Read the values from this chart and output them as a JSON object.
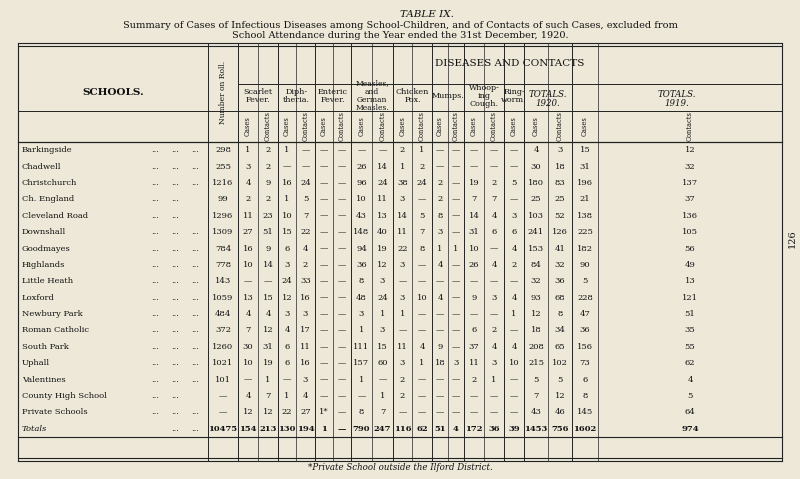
{
  "title_line1": "Summary of Cases of Infectious Diseases among School-Children, and of Contacts of such Cases, excluded from",
  "title_line2": "School Attendance during the Year ended the 31st December, 1920.",
  "table_label": "TABLE IX.",
  "diseases_header": "DISEASES AND CONTACTS",
  "footnote": "*Private School outside the Ilford District.",
  "bg_color": "#ede8d8",
  "schools": [
    "Barkingside",
    "Chadwell",
    "Christchurch",
    "Ch. England ...",
    "Cleveland Road",
    "Downshall",
    "Goodmayes",
    "Highlands",
    "Little Heath ...",
    "Loxford",
    "Newbury Park",
    "Roman Catholic",
    "South Park",
    "Uphall",
    "Valentines",
    "County High School",
    "Private Schools"
  ],
  "school_dots": [
    [
      "...",
      "...",
      "..."
    ],
    [
      "...",
      "...",
      "..."
    ],
    [
      "...",
      "...",
      "..."
    ],
    [
      "...",
      "...",
      ""
    ],
    [
      "...",
      "...",
      ""
    ],
    [
      "...",
      "...",
      "..."
    ],
    [
      "...",
      "...",
      "..."
    ],
    [
      "...",
      "...",
      "..."
    ],
    [
      "...",
      "...",
      ""
    ],
    [
      "...",
      "...",
      "..."
    ],
    [
      "...",
      "...",
      "..."
    ],
    [
      "...",
      "...",
      "..."
    ],
    [
      "...",
      "...",
      "..."
    ],
    [
      "...",
      "...",
      "..."
    ],
    [
      "...",
      "...",
      "..."
    ],
    [
      "...",
      ".."
    ],
    [
      "...",
      "...",
      "..."
    ]
  ],
  "roll": [
    "298",
    "255",
    "1216",
    "99",
    "1296",
    "1309",
    "784",
    "778",
    "143",
    "1059",
    "484",
    "372",
    "1260",
    "1021",
    "101",
    "—",
    "—"
  ],
  "scarlet_cases": [
    "1",
    "3",
    "4",
    "2",
    "11",
    "27",
    "16",
    "10",
    "—",
    "13",
    "4",
    "7",
    "30",
    "10",
    "—",
    "4",
    "12"
  ],
  "scarlet_cont": [
    "2",
    "2",
    "9",
    "2",
    "23",
    "51",
    "9",
    "14",
    "—",
    "15",
    "4",
    "12",
    "31",
    "19",
    "1",
    "7",
    "12"
  ],
  "diph_cases": [
    "1",
    "—",
    "16",
    "1",
    "10",
    "15",
    "6",
    "3",
    "24",
    "12",
    "3",
    "4",
    "6",
    "6",
    "—",
    "1",
    "22"
  ],
  "diph_cont": [
    "—",
    "—",
    "24",
    "5",
    "7",
    "22",
    "4",
    "2",
    "33",
    "16",
    "3",
    "17",
    "11",
    "16",
    "3",
    "4",
    "27"
  ],
  "enteric_cases": [
    "—",
    "—",
    "—",
    "—",
    "—",
    "—",
    "—",
    "—",
    "—",
    "—",
    "—",
    "—",
    "—",
    "—",
    "—",
    "—",
    "1*"
  ],
  "enteric_cont": [
    "—",
    "—",
    "—",
    "—",
    "—",
    "—",
    "—",
    "—",
    "—",
    "—",
    "—",
    "—",
    "—",
    "—",
    "—",
    "—",
    "—"
  ],
  "measles_cases": [
    "—",
    "26",
    "96",
    "10",
    "43",
    "148",
    "94",
    "36",
    "8",
    "48",
    "3",
    "1",
    "111",
    "157",
    "1",
    "—",
    "8"
  ],
  "measles_cont": [
    "—",
    "14",
    "24",
    "11",
    "13",
    "40",
    "19",
    "12",
    "3",
    "24",
    "1",
    "3",
    "15",
    "60",
    "—",
    "1",
    "7"
  ],
  "chicken_cases": [
    "2",
    "1",
    "38",
    "3",
    "14",
    "11",
    "22",
    "3",
    "—",
    "3",
    "1",
    "—",
    "11",
    "3",
    "2",
    "2",
    "—"
  ],
  "chicken_cont": [
    "1",
    "2",
    "24",
    "—",
    "5",
    "7",
    "8",
    "—",
    "—",
    "10",
    "—",
    "—",
    "4",
    "1",
    "—",
    "—",
    "—"
  ],
  "mumps_cases": [
    "—",
    "—",
    "2",
    "2",
    "8",
    "3",
    "1",
    "4",
    "—",
    "4",
    "—",
    "—",
    "9",
    "18",
    "—",
    "—",
    "—"
  ],
  "mumps_cont": [
    "—",
    "—",
    "—",
    "—",
    "—",
    "—",
    "1",
    "—",
    "—",
    "—",
    "—",
    "—",
    "—",
    "3",
    "—",
    "—",
    "—"
  ],
  "whoop_cases": [
    "—",
    "—",
    "19",
    "7",
    "14",
    "31",
    "10",
    "26",
    "—",
    "9",
    "—",
    "6",
    "37",
    "11",
    "2",
    "—",
    "—"
  ],
  "whoop_cont": [
    "—",
    "—",
    "2",
    "7",
    "4",
    "6",
    "—",
    "4",
    "—",
    "3",
    "—",
    "2",
    "4",
    "3",
    "1",
    "—",
    "—"
  ],
  "ring_cases": [
    "—",
    "—",
    "5",
    "—",
    "3",
    "6",
    "4",
    "2",
    "—",
    "4",
    "1",
    "—",
    "4",
    "10",
    "—",
    "—",
    "—"
  ],
  "totals20_cases": [
    "4",
    "30",
    "180",
    "25",
    "103",
    "241",
    "153",
    "84",
    "32",
    "93",
    "12",
    "18",
    "208",
    "215",
    "5",
    "7",
    "43"
  ],
  "totals20_cont": [
    "3",
    "18",
    "83",
    "25",
    "52",
    "126",
    "41",
    "32",
    "36",
    "68",
    "8",
    "34",
    "65",
    "102",
    "5",
    "12",
    "46"
  ],
  "totals19_cases": [
    "15",
    "31",
    "196",
    "21",
    "138",
    "225",
    "182",
    "90",
    "5",
    "228",
    "47",
    "36",
    "156",
    "73",
    "6",
    "8",
    "145"
  ],
  "totals19_cont": [
    "12",
    "32",
    "137",
    "37",
    "136",
    "105",
    "56",
    "49",
    "13",
    "121",
    "51",
    "35",
    "55",
    "62",
    "4",
    "5",
    "64"
  ],
  "total_row": [
    "10475",
    "154",
    "213",
    "130",
    "194",
    "1",
    "—",
    "790",
    "247",
    "116",
    "62",
    "51",
    "4",
    "172",
    "36",
    "39",
    "1453",
    "756",
    "1602",
    "974"
  ]
}
